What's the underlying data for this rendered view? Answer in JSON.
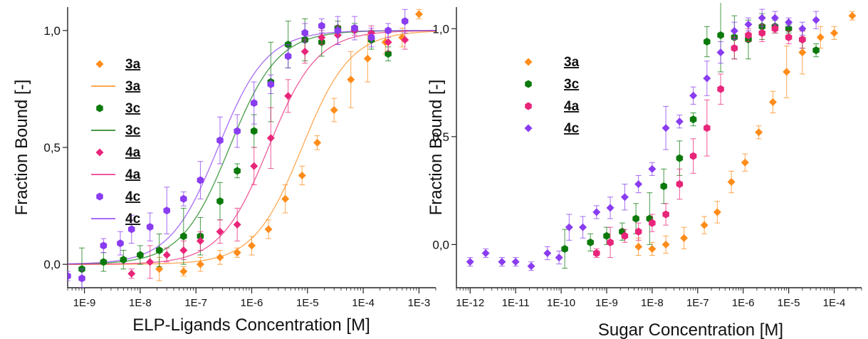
{
  "chart_data": [
    {
      "type": "scatter",
      "xlabel": "ELP-Ligands Concentration [M]",
      "ylabel": "Fraction Bound [-]",
      "xscale": "log",
      "xlim": [
        5e-10,
        0.002
      ],
      "ylim": [
        -0.1,
        1.1
      ],
      "xticks": [
        1e-09,
        1e-08,
        1e-07,
        1e-06,
        1e-05,
        0.0001,
        0.001
      ],
      "xtick_labels": [
        "1E-9",
        "1E-8",
        "1E-7",
        "1E-6",
        "1E-5",
        "1E-4",
        "1E-3"
      ],
      "yticks": [
        0,
        0.5,
        1.0
      ],
      "ytick_labels": [
        "0,0",
        "0,5",
        "1,0"
      ],
      "legend_position": "top-left",
      "legend_has_lines": true,
      "series": [
        {
          "name": "3a",
          "color": "#ff8c1a",
          "marker": "diamond",
          "fit": {
            "ec50": 8e-06,
            "hill": 1.0
          },
          "x": [
            2.2e-08,
            6e-08,
            1.2e-07,
            2.7e-07,
            5.5e-07,
            1e-06,
            2e-06,
            4e-06,
            8e-06,
            1.5e-05,
            3e-05,
            6e-05,
            0.00012,
            0.00025,
            0.0005,
            0.001
          ],
          "y": [
            -0.02,
            -0.03,
            0.0,
            0.03,
            0.05,
            0.08,
            0.15,
            0.28,
            0.38,
            0.52,
            0.66,
            0.79,
            0.88,
            0.95,
            0.97,
            1.07
          ],
          "err": [
            0.05,
            0.02,
            0.03,
            0.03,
            0.02,
            0.04,
            0.04,
            0.06,
            0.04,
            0.03,
            0.05,
            0.12,
            0.1,
            0.05,
            0.04,
            0.02
          ]
        },
        {
          "name": "3c",
          "color": "#0b7a0b",
          "marker": "hexagon",
          "fit": {
            "ec50": 4e-07,
            "hill": 1.0
          },
          "x": [
            9e-10,
            2.2e-09,
            5e-09,
            1e-08,
            2.2e-08,
            6e-08,
            1.2e-07,
            2.7e-07,
            5.5e-07,
            1.1e-06,
            2.2e-06,
            4.5e-06,
            9e-06,
            1.8e-05,
            3.5e-05,
            7e-05,
            0.00014,
            0.00028
          ],
          "y": [
            -0.02,
            0.01,
            0.02,
            0.04,
            0.06,
            0.12,
            0.12,
            0.27,
            0.4,
            0.57,
            0.78,
            0.94,
            0.96,
            0.95,
            1.01,
            1.01,
            0.96,
            0.9
          ],
          "err": [
            0.09,
            0.04,
            0.04,
            0.04,
            0.07,
            0.12,
            0.08,
            0.08,
            0.03,
            0.07,
            0.17,
            0.1,
            0.09,
            0.06,
            0.03,
            0.02,
            0.04,
            0.03
          ]
        },
        {
          "name": "4a",
          "color": "#e8257a",
          "marker": "diamond",
          "fit": {
            "ec50": 2e-06,
            "hill": 1.0
          },
          "x": [
            7e-09,
            1.5e-08,
            3e-08,
            6e-08,
            1.2e-07,
            2.7e-07,
            5.5e-07,
            1.1e-06,
            2.2e-06,
            4.5e-06,
            9e-06,
            1.8e-05,
            3.5e-05,
            7e-05,
            0.00014,
            0.00028,
            0.00056
          ],
          "y": [
            -0.04,
            0.01,
            0.04,
            0.06,
            0.1,
            0.14,
            0.17,
            0.42,
            0.54,
            0.72,
            0.91,
            0.97,
            0.98,
            1.0,
            0.99,
            0.95,
            0.96
          ],
          "err": [
            0.02,
            0.07,
            0.03,
            0.04,
            0.04,
            0.05,
            0.07,
            0.08,
            0.13,
            0.07,
            0.05,
            0.03,
            0.04,
            0.02,
            0.03,
            0.04,
            0.04
          ]
        },
        {
          "name": "4c",
          "color": "#8a3cf0",
          "marker": "hexagon",
          "fit": {
            "ec50": 2.5e-07,
            "hill": 1.0
          },
          "x": [
            5e-10,
            9e-10,
            2.2e-09,
            4.4e-09,
            7e-09,
            1.5e-08,
            3e-08,
            6e-08,
            1.2e-07,
            2.7e-07,
            5.5e-07,
            1.1e-06,
            2.2e-06,
            4.5e-06,
            9e-06,
            1.8e-05,
            3.5e-05,
            7e-05,
            0.00014,
            0.00028,
            0.00056
          ],
          "y": [
            -0.05,
            -0.06,
            0.08,
            0.09,
            0.15,
            0.16,
            0.23,
            0.28,
            0.36,
            0.53,
            0.57,
            0.69,
            0.77,
            0.89,
            0.99,
            1.02,
            1.0,
            1.01,
            0.97,
            1.0,
            1.04
          ],
          "err": [
            0.02,
            0.04,
            0.03,
            0.05,
            0.06,
            0.06,
            0.1,
            0.03,
            0.08,
            0.1,
            0.07,
            0.09,
            0.04,
            0.05,
            0.04,
            0.03,
            0.06,
            0.05,
            0.04,
            0.03,
            0.05
          ]
        }
      ]
    },
    {
      "type": "scatter",
      "xlabel": "Sugar Concentration [M]",
      "ylabel": "Fraction Bound [-]",
      "xscale": "log",
      "xlim": [
        5e-13,
        0.0004
      ],
      "ylim": [
        -0.2,
        1.1
      ],
      "xticks": [
        1e-12,
        1e-11,
        1e-10,
        1e-09,
        1e-08,
        1e-07,
        1e-06,
        1e-05,
        0.0001
      ],
      "xtick_labels": [
        "1E-12",
        "1E-11",
        "1E-10",
        "1E-9",
        "1E-8",
        "1E-7",
        "1E-6",
        "1E-5",
        "1E-4"
      ],
      "yticks": [
        0,
        0.5,
        1.0
      ],
      "ytick_labels": [
        "0,0",
        "0,5",
        "1,0"
      ],
      "legend_position": "top-left",
      "legend_has_lines": false,
      "series": [
        {
          "name": "3a",
          "color": "#ff8c1a",
          "marker": "diamond",
          "x": [
            5e-09,
            1e-08,
            2e-08,
            5e-08,
            1.4e-07,
            2.7e-07,
            5.5e-07,
            1.1e-06,
            2.2e-06,
            4.5e-06,
            9e-06,
            2e-05,
            5e-05,
            0.0001,
            0.00025
          ],
          "y": [
            -0.01,
            -0.02,
            0.0,
            0.03,
            0.09,
            0.15,
            0.29,
            0.38,
            0.52,
            0.66,
            0.8,
            0.89,
            0.96,
            0.98,
            1.06
          ],
          "err": [
            0.04,
            0.03,
            0.04,
            0.05,
            0.04,
            0.05,
            0.05,
            0.04,
            0.03,
            0.05,
            0.12,
            0.1,
            0.05,
            0.03,
            0.02
          ]
        },
        {
          "name": "3c",
          "color": "#0b7a0b",
          "marker": "hexagon",
          "x": [
            1.2e-10,
            4.4e-10,
            1e-09,
            2.2e-09,
            4.4e-09,
            8.8e-09,
            1.8e-08,
            4e-08,
            8e-08,
            1.6e-07,
            3.2e-07,
            6.4e-07,
            1.3e-06,
            2.6e-06,
            5e-06,
            1e-05,
            2e-05,
            4e-05
          ],
          "y": [
            -0.02,
            0.01,
            0.04,
            0.06,
            0.12,
            0.12,
            0.27,
            0.4,
            0.58,
            0.94,
            0.97,
            0.96,
            0.95,
            1.01,
            1.01,
            1.0,
            0.95,
            0.9
          ],
          "err": [
            0.09,
            0.04,
            0.04,
            0.04,
            0.07,
            0.12,
            0.08,
            0.08,
            0.03,
            0.07,
            0.17,
            0.1,
            0.09,
            0.06,
            0.03,
            0.02,
            0.04,
            0.03
          ]
        },
        {
          "name": "4a",
          "color": "#e8257a",
          "marker": "hexagon",
          "x": [
            6e-10,
            1.2e-09,
            2.5e-09,
            5e-09,
            1e-08,
            2e-08,
            4e-08,
            8e-08,
            1.6e-07,
            3.2e-07,
            6.4e-07,
            1.3e-06,
            2.6e-06,
            5e-06,
            1e-05,
            2e-05
          ],
          "y": [
            -0.04,
            0.01,
            0.04,
            0.06,
            0.1,
            0.14,
            0.28,
            0.41,
            0.54,
            0.72,
            0.91,
            0.97,
            0.98,
            1.0,
            0.96,
            0.95
          ],
          "err": [
            0.02,
            0.07,
            0.03,
            0.04,
            0.04,
            0.05,
            0.07,
            0.08,
            0.13,
            0.07,
            0.05,
            0.03,
            0.04,
            0.02,
            0.03,
            0.04
          ]
        },
        {
          "name": "4c",
          "color": "#8a3cf0",
          "marker": "diamond",
          "x": [
            1e-12,
            2.2e-12,
            5e-12,
            1e-11,
            2.2e-11,
            5e-11,
            9e-11,
            1.5e-10,
            3e-10,
            6e-10,
            1.2e-09,
            2.5e-09,
            5e-09,
            1e-08,
            2e-08,
            4e-08,
            8e-08,
            1.6e-07,
            3.2e-07,
            6.4e-07,
            1.3e-06,
            2.6e-06,
            5e-06,
            1e-05,
            2e-05,
            4e-05
          ],
          "y": [
            -0.08,
            -0.04,
            -0.08,
            -0.08,
            -0.1,
            -0.04,
            -0.06,
            0.08,
            0.08,
            0.15,
            0.17,
            0.22,
            0.28,
            0.35,
            0.54,
            0.57,
            0.69,
            0.77,
            0.89,
            0.99,
            1.02,
            1.05,
            1.05,
            1.03,
            1.0,
            1.04
          ],
          "err": [
            0.02,
            0.02,
            0.02,
            0.02,
            0.02,
            0.03,
            0.03,
            0.06,
            0.05,
            0.03,
            0.05,
            0.06,
            0.04,
            0.03,
            0.1,
            0.03,
            0.04,
            0.08,
            0.05,
            0.04,
            0.03,
            0.04,
            0.03,
            0.02,
            0.03,
            0.04
          ]
        }
      ]
    }
  ]
}
